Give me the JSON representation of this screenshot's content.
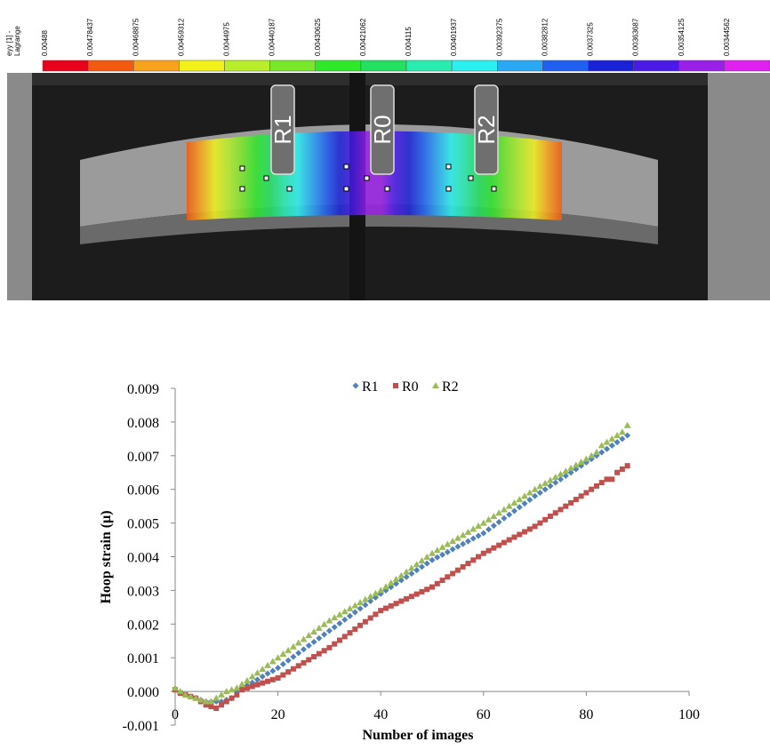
{
  "colorbar": {
    "title_lines": [
      "eyy [1] -",
      "Lagrange"
    ],
    "labels": [
      "0.00488",
      "0.00478437",
      "0.00468875",
      "0.00459312",
      "0.0044975",
      "0.00440187",
      "0.00430625",
      "0.00421062",
      "0.004115",
      "0.00401937",
      "0.00392375",
      "0.00382812",
      "0.0037325",
      "0.00363687",
      "0.00354125",
      "0.00344562"
    ],
    "colors": [
      "#e8001a",
      "#f25a10",
      "#f9a21c",
      "#f2f21a",
      "#b8ee2a",
      "#7ae82a",
      "#2ee82a",
      "#22e060",
      "#28ecb0",
      "#2af0f0",
      "#2aa8f4",
      "#2060f0",
      "#1a22d8",
      "#4a1ae8",
      "#9a20e8",
      "#e020f0"
    ]
  },
  "image": {
    "labels": [
      "R1",
      "R0",
      "R2"
    ]
  },
  "chart_data": {
    "type": "scatter",
    "x_label": "Number of images",
    "y_label": "Hoop strain (μ)",
    "xlim": [
      0,
      100
    ],
    "xticks": [
      0,
      20,
      40,
      60,
      80,
      100
    ],
    "ylim": [
      -0.001,
      0.009
    ],
    "yticks": [
      -0.001,
      {
        "value": 0,
        "label": "0.000"
      },
      0.001,
      0.002,
      0.003,
      0.004,
      0.005,
      0.006,
      0.007,
      0.008,
      0.009
    ],
    "grid": false,
    "legend": "top",
    "x": [
      0,
      1,
      2,
      3,
      4,
      5,
      6,
      7,
      8,
      9,
      10,
      11,
      12,
      13,
      14,
      15,
      16,
      17,
      18,
      19,
      20,
      21,
      22,
      23,
      24,
      25,
      26,
      27,
      28,
      29,
      30,
      31,
      32,
      33,
      34,
      35,
      36,
      37,
      38,
      39,
      40,
      41,
      42,
      43,
      44,
      45,
      46,
      47,
      48,
      49,
      50,
      51,
      52,
      53,
      54,
      55,
      56,
      57,
      58,
      59,
      60,
      61,
      62,
      63,
      64,
      65,
      66,
      67,
      68,
      69,
      70,
      71,
      72,
      73,
      74,
      75,
      76,
      77,
      78,
      79,
      80,
      81,
      82,
      83,
      84,
      85,
      86,
      87,
      88
    ],
    "series": [
      {
        "name": "R1",
        "color": "#4f81bd",
        "marker": "diamond",
        "values": [
          5e-05,
          -5e-05,
          -0.0001,
          -0.00015,
          -0.0002,
          -0.00025,
          -0.0003,
          -0.0003,
          -0.0003,
          -0.0003,
          -0.00025,
          -0.0002,
          0.0,
          9e-05,
          0.00018,
          0.00026,
          0.00035,
          0.00044,
          0.00053,
          0.00061,
          0.0007,
          0.00081,
          0.00092,
          0.00103,
          0.00114,
          0.00125,
          0.00136,
          0.00147,
          0.00158,
          0.00169,
          0.0018,
          0.00191,
          0.00202,
          0.00213,
          0.00224,
          0.00235,
          0.00246,
          0.00257,
          0.00268,
          0.00279,
          0.0029,
          0.003,
          0.0031,
          0.0032,
          0.0033,
          0.0034,
          0.0035,
          0.0036,
          0.0037,
          0.0038,
          0.0039,
          0.00398,
          0.00406,
          0.00414,
          0.00422,
          0.0043,
          0.00438,
          0.00446,
          0.00454,
          0.00462,
          0.0047,
          0.00481,
          0.00492,
          0.00503,
          0.00514,
          0.00525,
          0.00536,
          0.00547,
          0.00558,
          0.00569,
          0.0058,
          0.0059,
          0.006,
          0.0061,
          0.0062,
          0.0063,
          0.0064,
          0.0065,
          0.0066,
          0.0067,
          0.0068,
          0.0069,
          0.007,
          0.0071,
          0.0072,
          0.0073,
          0.0074,
          0.0075,
          0.0076
        ]
      },
      {
        "name": "R0",
        "color": "#c0504d",
        "marker": "square",
        "values": [
          5e-05,
          -5e-05,
          -0.0001,
          -0.00015,
          -0.0002,
          -0.0003,
          -0.0004,
          -0.00045,
          -0.0005,
          -0.0004,
          -0.0003,
          -0.0002,
          -0.0001,
          5e-05,
          0.0001,
          0.00015,
          0.0002,
          0.00025,
          0.0003,
          0.00035,
          0.0004,
          0.00049,
          0.00058,
          0.00067,
          0.00076,
          0.00085,
          0.00094,
          0.00103,
          0.00112,
          0.00121,
          0.0013,
          0.00141,
          0.00152,
          0.00163,
          0.00174,
          0.00185,
          0.00196,
          0.00207,
          0.00218,
          0.00229,
          0.0024,
          0.00247,
          0.00254,
          0.00261,
          0.00268,
          0.00275,
          0.00282,
          0.00289,
          0.00296,
          0.00303,
          0.0031,
          0.0032,
          0.0033,
          0.0034,
          0.0035,
          0.0036,
          0.0037,
          0.0038,
          0.0039,
          0.004,
          0.0041,
          0.00418,
          0.00426,
          0.00434,
          0.00442,
          0.0045,
          0.00458,
          0.00466,
          0.00474,
          0.00482,
          0.0049,
          0.005,
          0.0051,
          0.0052,
          0.0053,
          0.0054,
          0.0055,
          0.0056,
          0.0057,
          0.0058,
          0.0059,
          0.006,
          0.0061,
          0.0062,
          0.0063,
          0.0063,
          0.0065,
          0.0066,
          0.0067
        ]
      },
      {
        "name": "R2",
        "color": "#9bbb59",
        "marker": "triangle",
        "values": [
          0.0001,
          0.0,
          -0.0001,
          -0.00015,
          -0.0002,
          -0.00025,
          -0.0003,
          -0.0003,
          -0.0002,
          -0.0001,
          0.0,
          5e-05,
          0.0001,
          0.00021,
          0.00032,
          0.00044,
          0.00055,
          0.00066,
          0.00077,
          0.00089,
          0.001,
          0.00111,
          0.00122,
          0.00133,
          0.00144,
          0.00155,
          0.00166,
          0.00177,
          0.00188,
          0.00199,
          0.0021,
          0.00219,
          0.00228,
          0.00237,
          0.00246,
          0.00255,
          0.00264,
          0.00273,
          0.00282,
          0.00291,
          0.003,
          0.00311,
          0.00322,
          0.00333,
          0.00344,
          0.00355,
          0.00366,
          0.00377,
          0.00388,
          0.00399,
          0.0041,
          0.00419,
          0.00428,
          0.00437,
          0.00446,
          0.00455,
          0.00464,
          0.00473,
          0.00482,
          0.00491,
          0.005,
          0.0051,
          0.0052,
          0.0053,
          0.0054,
          0.0055,
          0.0056,
          0.0057,
          0.0058,
          0.0059,
          0.006,
          0.00609,
          0.00618,
          0.00627,
          0.00636,
          0.00645,
          0.00654,
          0.00663,
          0.00672,
          0.00681,
          0.0069,
          0.007,
          0.0071,
          0.0073,
          0.0074,
          0.0075,
          0.0076,
          0.0077,
          0.0079
        ]
      }
    ]
  }
}
